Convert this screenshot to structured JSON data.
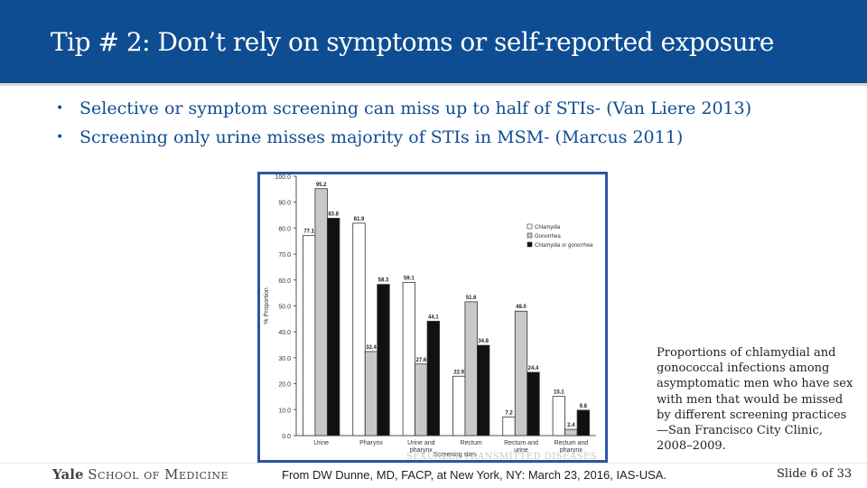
{
  "slide": {
    "title": "Tip # 2: Don’t rely on symptoms or self-reported exposure",
    "bullets": [
      "Selective or symptom screening can miss up to half of STIs- (Van Liere 2013)",
      "Screening only urine misses majority of STIs in MSM- (Marcus 2011)"
    ],
    "bullet_glyph": "•",
    "caption": "Proportions of chlamydial and gonococcal infections among asymptomatic men who have sex with men that would be missed by different screening practices—San Francisco City Clinic, 2008–2009.",
    "watermark": "SEXUALLY TRANSMITTED DISEASES",
    "footer": {
      "logo_word": "Yale",
      "logo_rest": "School of Medicine",
      "source": "From DW Dunne, MD, FACP, at New York, NY: March 23, 2016, IAS-USA.",
      "slide_label": "Slide 6 of",
      "slide_total": "33"
    },
    "colors": {
      "header": "#0f4d92",
      "frame": "#2b56a6",
      "text_blue": "#0f4d92"
    }
  },
  "chart_data": {
    "type": "bar",
    "xlabel": "Screening sites",
    "ylabel": "% Proportion",
    "ylim": [
      0,
      100
    ],
    "yticks": [
      "0.0",
      "10.0",
      "20.0",
      "30.0",
      "40.0",
      "50.0",
      "60.0",
      "70.0",
      "80.0",
      "90.0",
      "100.0"
    ],
    "categories": [
      "Urine",
      "Pharynx",
      "Urine and pharynx",
      "Rectum",
      "Rectum and urine",
      "Rectum and pharynx"
    ],
    "category_lines": [
      [
        "Urine"
      ],
      [
        "Pharynx"
      ],
      [
        "Urine and",
        "pharynx"
      ],
      [
        "Rectum"
      ],
      [
        "Rectum and",
        "urine"
      ],
      [
        "Rectum and",
        "pharynx"
      ]
    ],
    "series": [
      {
        "name": "Chlamydia",
        "values": [
          77.1,
          81.9,
          59.1,
          22.9,
          7.2,
          15.1
        ],
        "color": "#ffffff"
      },
      {
        "name": "Gonorrhea",
        "values": [
          95.2,
          32.4,
          27.6,
          51.6,
          48.0,
          2.4
        ],
        "color": "#c8c8c8"
      },
      {
        "name": "Chlamydia or gonorrhea",
        "values": [
          83.8,
          58.3,
          44.1,
          34.8,
          24.4,
          9.8
        ],
        "color": "#111111"
      }
    ],
    "legend_position": "right",
    "grid": false
  }
}
